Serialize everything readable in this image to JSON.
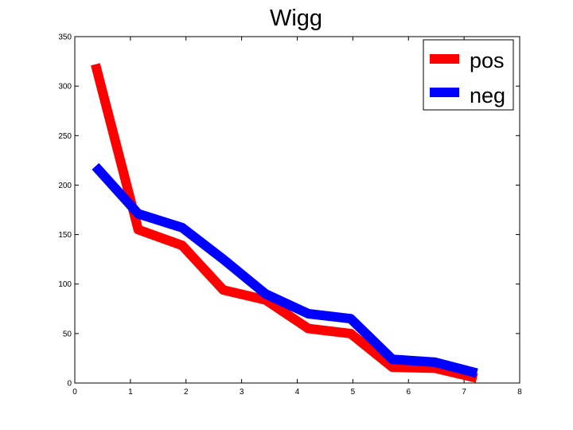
{
  "chart_data": {
    "type": "line",
    "title": "Wigg",
    "xlabel": "",
    "ylabel": "",
    "xlim": [
      0,
      8
    ],
    "ylim": [
      0,
      350
    ],
    "xticks": [
      0,
      1,
      2,
      3,
      4,
      5,
      6,
      7,
      8
    ],
    "yticks": [
      0,
      50,
      100,
      150,
      200,
      250,
      300,
      350
    ],
    "grid": false,
    "legend_position": "top-right",
    "series": [
      {
        "name": "pos",
        "color": "#ff0000",
        "x": [
          0.37,
          1.14,
          1.93,
          2.67,
          3.43,
          4.2,
          4.96,
          5.71,
          6.48,
          7.23
        ],
        "y": [
          322,
          155,
          139,
          94,
          84,
          55,
          50,
          16,
          15,
          5
        ]
      },
      {
        "name": "neg",
        "color": "#0000ff",
        "x": [
          0.37,
          1.14,
          1.93,
          2.67,
          3.43,
          4.2,
          4.96,
          5.71,
          6.48,
          7.23
        ],
        "y": [
          219,
          171,
          157,
          125,
          90,
          70,
          65,
          24,
          21,
          10
        ]
      }
    ]
  }
}
